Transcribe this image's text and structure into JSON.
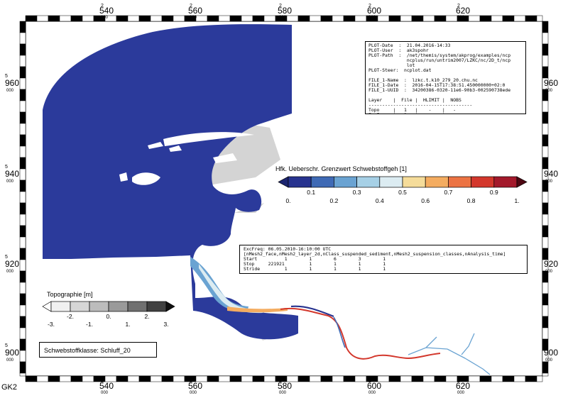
{
  "axes": {
    "x_labels": [
      {
        "top": "2",
        "main": "540",
        "sub": "000"
      },
      {
        "top": "2",
        "main": "560",
        "sub": "000"
      },
      {
        "top": "2",
        "main": "580",
        "sub": "000"
      },
      {
        "top": "2",
        "main": "600",
        "sub": "000"
      },
      {
        "top": "2",
        "main": "620",
        "sub": "000"
      }
    ],
    "y_labels": [
      {
        "top": "5",
        "main": "960",
        "sub": "000"
      },
      {
        "top": "5",
        "main": "940",
        "sub": "000"
      },
      {
        "top": "5",
        "main": "920",
        "sub": "000"
      },
      {
        "top": "5",
        "main": "900",
        "sub": "000"
      }
    ],
    "crs": "GK2"
  },
  "meta_box": {
    "lines": [
      "PLOT-Date  :  21.04.2016-14:33",
      "PLOT-User  :  ak3spohr",
      "PLOT-Path  :  /net/themis/system/akprog/examples/ncp",
      "              ncplus/run/untrim2007/LZKC/nc/2D_t/ncp",
      "              lot",
      "PLOT-Steer:  ncplot.dat",
      "",
      "FILE_1-Name  :  lzkc.t.k10_279_20.chu.nc",
      "FILE_1-Date  :  2016-04-15T17:38:51.450000000+02:0",
      "FILE_1-UUID  :  34200386-0320-11e6-90b3-002590738ede",
      "",
      "Layer    |  File |  HLIMIT |  NOBS",
      "--------------------------------------",
      "Topo     |   1   |    -    |   -",
      "ExcFreq  |   1   |    -    |   -"
    ]
  },
  "time_box": {
    "lines": [
      "ExcFreq: 06.05.2010-16:10:00 UTC",
      "[nMesh2_face,nMesh2_layer_2d,nClass_suspended_sediment,nMesh2_suspension_classes,nAnalysis_time]",
      "Start          1        1        6        3        1",
      "Stop     221921         1        1        1        1",
      "Stride         1        1        1        1        1"
    ]
  },
  "legend_exc": {
    "title": "Hfk. Ueberschr. Grenzwert Schwebstoffgeh [1]",
    "upper_ticks": [
      "0.1",
      "0.3",
      "0.5",
      "0.7",
      "0.9"
    ],
    "lower_ticks": [
      "0.",
      "0.2",
      "0.4",
      "0.6",
      "0.8",
      "1."
    ],
    "colors": [
      "#1c2570",
      "#27338f",
      "#3f6ab5",
      "#6aa3d2",
      "#a6d0e6",
      "#dcecf2",
      "#f5dc9a",
      "#f4ac60",
      "#ec7343",
      "#d3372c",
      "#a3192b",
      "#4e0712"
    ]
  },
  "legend_topo": {
    "title": "Topographie [m]",
    "ticks": [
      "-3.",
      "-2.",
      "-1.",
      "0.",
      "1.",
      "2.",
      "3."
    ],
    "colors": [
      "#ffffff",
      "#f0f0f0",
      "#d6d6d6",
      "#bcbcbc",
      "#9a9a9a",
      "#707070",
      "#404040",
      "#101010"
    ]
  },
  "class_label": "Schwebstoffklasse: Schluff_20",
  "water_color": "#2b3a9b"
}
